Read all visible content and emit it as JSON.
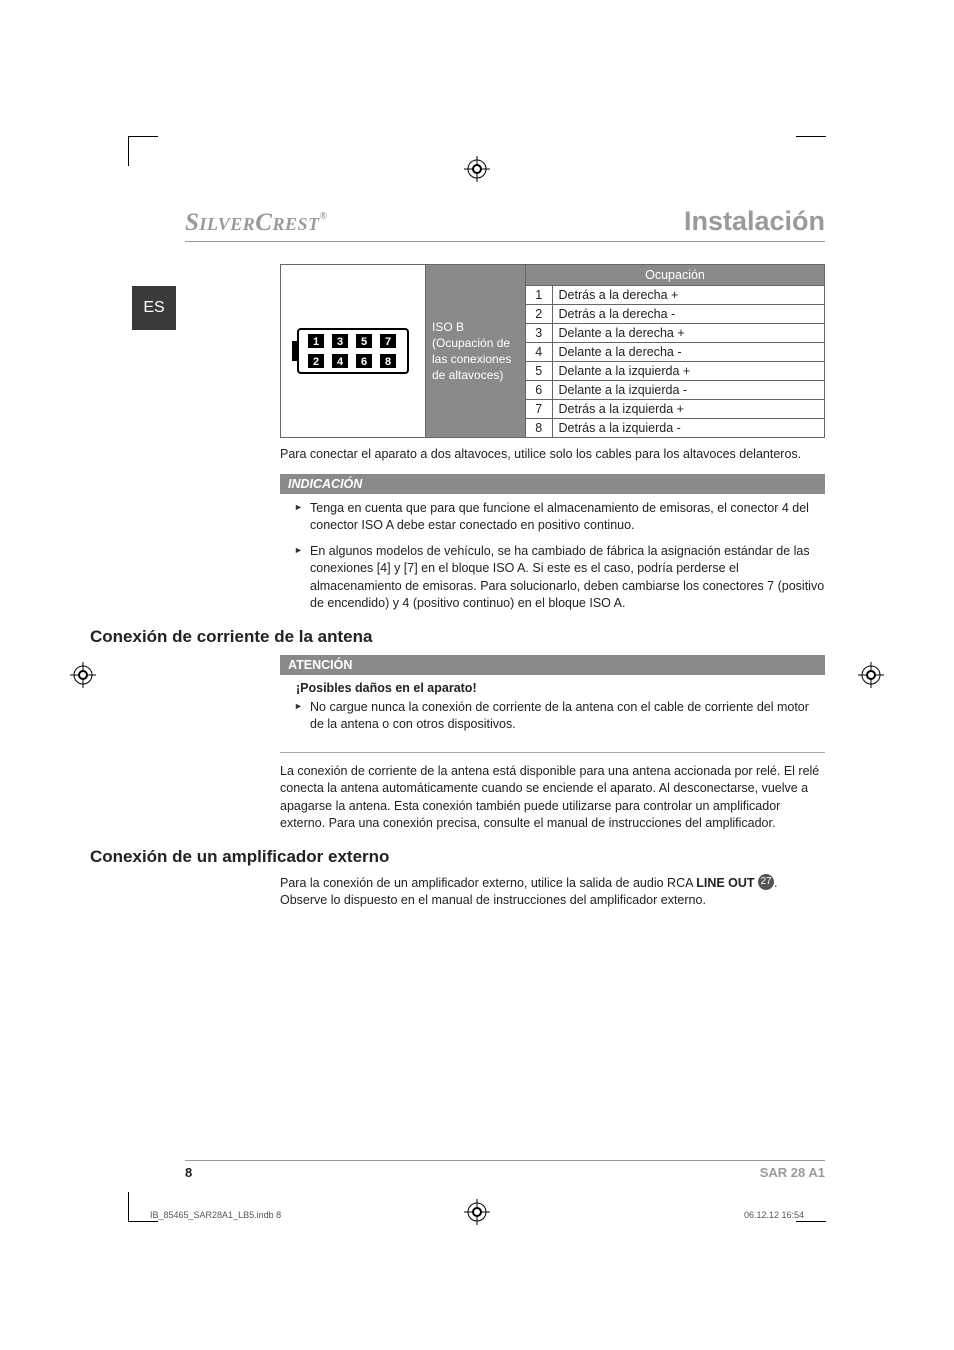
{
  "header": {
    "brand_html": "SilverCrest",
    "brand_1": "Silver",
    "brand_2": "Crest",
    "reg": "®",
    "title": "Instalación"
  },
  "langTab": "ES",
  "iso": {
    "label": "ISO B\n(Ocupación de las conexiones de altavoces)",
    "label_line1": "ISO B",
    "label_line2": "(Ocupación de las conexiones de altavoces)",
    "pins_header": "Ocupación",
    "pins": [
      {
        "n": "1",
        "label": "Detrás a la derecha +"
      },
      {
        "n": "2",
        "label": "Detrás a la derecha -"
      },
      {
        "n": "3",
        "label": "Delante a la derecha +"
      },
      {
        "n": "4",
        "label": "Delante a la derecha -"
      },
      {
        "n": "5",
        "label": "Delante a la izquierda +"
      },
      {
        "n": "6",
        "label": "Delante a la izquierda -"
      },
      {
        "n": "7",
        "label": "Detrás a la izquierda +"
      },
      {
        "n": "8",
        "label": "Detrás a la izquierda -"
      }
    ],
    "connector_pins": [
      "1",
      "3",
      "5",
      "7",
      "2",
      "4",
      "6",
      "8"
    ]
  },
  "para_after_table": "Para conectar el aparato a dos altavoces, utilice solo los cables para los altavoces delanteros.",
  "note": {
    "header": "INDICACIÓN",
    "items": [
      "Tenga en cuenta que para que funcione el almacenamiento de emisoras, el conector 4 del conector ISO A debe estar conectado en positivo continuo.",
      "En algunos modelos de vehículo, se ha cambiado de fábrica la asignación estándar de las conexiones [4] y [7] en el bloque ISO A. Si este es el caso, podría perderse el almacenamiento de emisoras. Para solucionarlo, deben cambiarse los conectores 7 (positivo de encendido) y 4 (positivo continuo) en el bloque ISO A."
    ]
  },
  "section_antenna": {
    "title": "Conexión de corriente de la antena",
    "warn_header": "ATENCIÓN",
    "warn_sub": "¡Posibles daños en el aparato!",
    "warn_item": "No cargue nunca la conexión de corriente de la antena con el cable de corriente del motor de la antena o con otros dispositivos.",
    "para": "La conexión de corriente de la antena está disponible para una antena accionada por relé. El relé conecta la antena automáticamente cuando se enciende el aparato. Al desconectarse, vuelve a apagarse la antena. Esta conexión también puede utilizarse para controlar un amplificador externo. Para una conexión precisa, consulte el manual de instrucciones del amplificador."
  },
  "section_amp": {
    "title": "Conexión de un amplificador externo",
    "para_before": "Para la conexión de un amplificador externo, utilice la salida de audio RCA ",
    "lineout": "LINE OUT",
    "circled": "27",
    "para_after": ". Observe lo dispuesto en el manual de instrucciones del amplificador externo."
  },
  "footer": {
    "page": "8",
    "model": "SAR 28 A1"
  },
  "print": {
    "left": "IB_85465_SAR28A1_LB5.indb   8",
    "right": "06.12.12   16:54"
  },
  "colors": {
    "grey_text": "#9a9a9a",
    "bar_bg": "#8a8a8a",
    "tab_bg": "#3a3a3a"
  }
}
